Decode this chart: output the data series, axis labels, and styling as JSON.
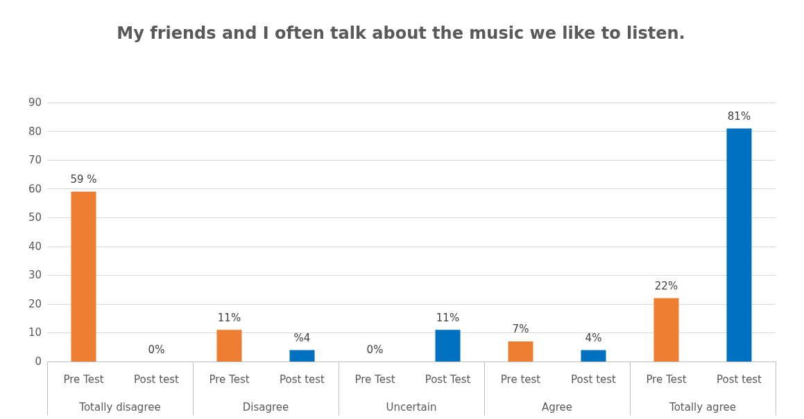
{
  "chart_data": {
    "type": "bar",
    "title": "My friends and I often talk about the music we like to listen.",
    "categories": [
      "Pre Test",
      "Post test",
      "Pre Test",
      "Post test",
      "Pre Test",
      "Post Test",
      "Pre test",
      "Post test",
      "Pre Test",
      "Post test"
    ],
    "values": [
      59,
      0,
      11,
      4,
      0,
      11,
      7,
      4,
      22,
      81
    ],
    "colors": [
      "#ed7d31",
      "#0070c0",
      "#ed7d31",
      "#0070c0",
      "#ed7d31",
      "#0070c0",
      "#ed7d31",
      "#0070c0",
      "#ed7d31",
      "#0070c0"
    ],
    "value_labels": [
      "59 %",
      "0%",
      "11%",
      "%4",
      "0%",
      "11%",
      "7%",
      "4%",
      "22%",
      "81%"
    ],
    "annotations": [
      "Totally disagree",
      "Disagree",
      "Uncertain",
      "Agree",
      "Totally agree"
    ],
    "ylim": [
      0,
      90
    ],
    "yticks": [
      0,
      10,
      20,
      30,
      40,
      50,
      60,
      70,
      80,
      90
    ],
    "grid": "y"
  }
}
